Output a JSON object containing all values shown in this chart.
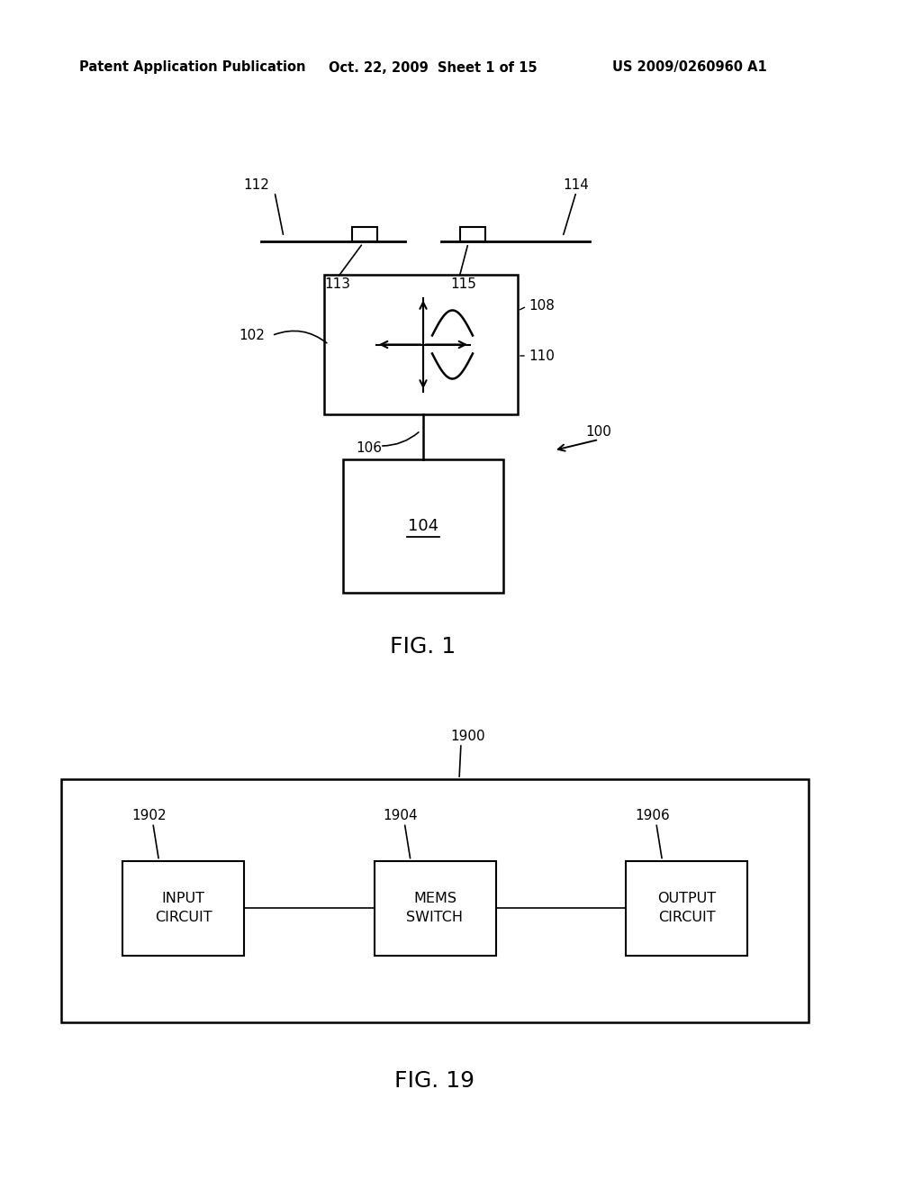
{
  "bg_color": "#ffffff",
  "header_text": "Patent Application Publication",
  "header_date": "Oct. 22, 2009  Sheet 1 of 15",
  "header_patent": "US 2009/0260960 A1",
  "fig1_caption": "FIG. 1",
  "fig19_caption": "FIG. 19",
  "label_100": "100",
  "label_102": "102",
  "label_104": "104",
  "label_106": "106",
  "label_108": "108",
  "label_110": "110",
  "label_112": "112",
  "label_113": "113",
  "label_114": "114",
  "label_115": "115",
  "label_1900": "1900",
  "label_1902": "1902",
  "label_1904": "1904",
  "label_1906": "1906",
  "box_input": "INPUT\nCIRCUIT",
  "box_mems": "MEMS\nSWITCH",
  "box_output": "OUTPUT\nCIRCUIT",
  "text_color": "#000000",
  "line_color": "#000000"
}
